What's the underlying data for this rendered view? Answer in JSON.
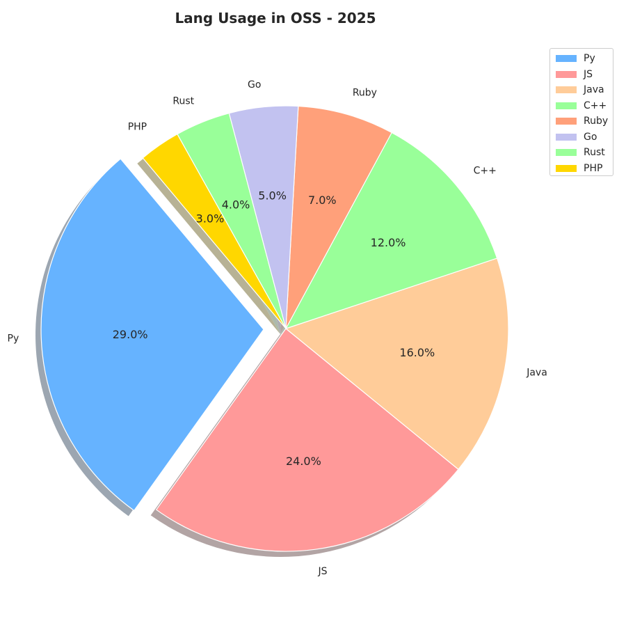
{
  "chart_data": {
    "type": "pie",
    "title": "Lang Usage in OSS - 2025",
    "categories": [
      "Py",
      "JS",
      "Java",
      "C++",
      "Ruby",
      "Go",
      "Rust",
      "PHP"
    ],
    "values": [
      29.0,
      24.0,
      16.0,
      12.0,
      7.0,
      5.0,
      4.0,
      3.0
    ],
    "value_labels": [
      "29.0%",
      "24.0%",
      "16.0%",
      "12.0%",
      "7.0%",
      "5.0%",
      "4.0%",
      "3.0%"
    ],
    "colors": [
      "#66b3ff",
      "#ff9999",
      "#ffcc99",
      "#99ff99",
      "#ffa07a",
      "#c2c2f0",
      "#99ff99",
      "#ffd700"
    ],
    "exploded": [
      "Py"
    ],
    "shadow": true,
    "legend": {
      "placement": "top-right"
    }
  }
}
